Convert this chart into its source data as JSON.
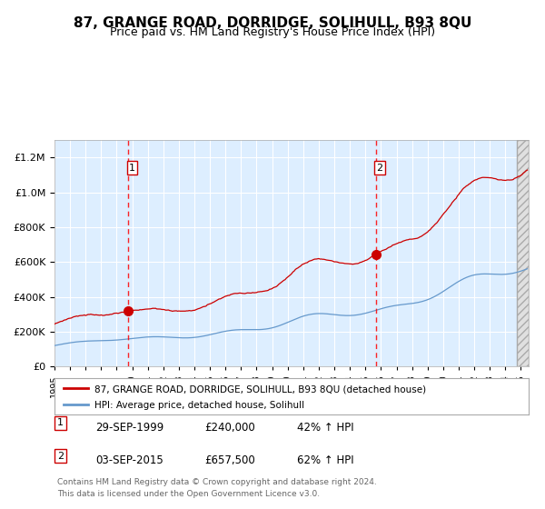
{
  "title": "87, GRANGE ROAD, DORRIDGE, SOLIHULL, B93 8QU",
  "subtitle": "Price paid vs. HM Land Registry's House Price Index (HPI)",
  "title_fontsize": 11,
  "subtitle_fontsize": 9,
  "background_color": "#ffffff",
  "plot_bg_color": "#ddeeff",
  "grid_color": "#ffffff",
  "red_line_color": "#cc0000",
  "blue_line_color": "#6699cc",
  "sale1_date_num": 1999.75,
  "sale1_price": 240000,
  "sale2_date_num": 2015.67,
  "sale2_price": 657500,
  "legend_line1": "87, GRANGE ROAD, DORRIDGE, SOLIHULL, B93 8QU (detached house)",
  "legend_line2": "HPI: Average price, detached house, Solihull",
  "table_entries": [
    {
      "num": "1",
      "date": "29-SEP-1999",
      "price": "£240,000",
      "change": "42% ↑ HPI"
    },
    {
      "num": "2",
      "date": "03-SEP-2015",
      "price": "£657,500",
      "change": "62% ↑ HPI"
    }
  ],
  "footer": "Contains HM Land Registry data © Crown copyright and database right 2024.\nThis data is licensed under the Open Government Licence v3.0.",
  "ylim": [
    0,
    1300000
  ],
  "yticks": [
    0,
    200000,
    400000,
    600000,
    800000,
    1000000,
    1200000
  ],
  "xlim_start": 1995.0,
  "xlim_end": 2025.5,
  "hatch_start": 2024.75
}
